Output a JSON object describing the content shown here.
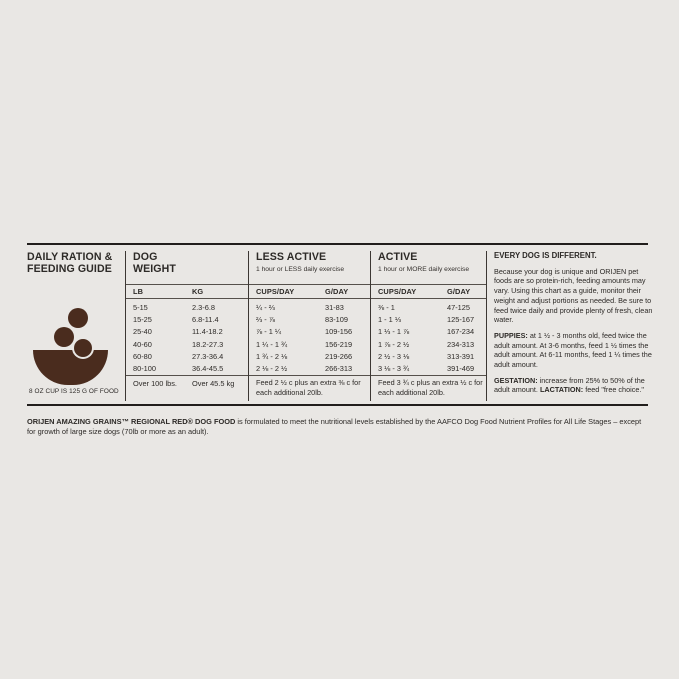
{
  "guide": {
    "title_line1": "DAILY RATION &",
    "title_line2": "FEEDING GUIDE",
    "bowl_icon": "bowl-with-kibble",
    "bowl_color": "#4a2c1e",
    "background_color": "#e9e7e4",
    "cup_note": "8 OZ CUP IS 125 G OF FOOD"
  },
  "weight": {
    "title_line1": "DOG",
    "title_line2": "WEIGHT",
    "col_lb": "LB",
    "col_kg": "KG",
    "rows": [
      {
        "lb": "5-15",
        "kg": "2.3-6.8"
      },
      {
        "lb": "15-25",
        "kg": "6.8-11.4"
      },
      {
        "lb": "25-40",
        "kg": "11.4-18.2"
      },
      {
        "lb": "40-60",
        "kg": "18.2-27.3"
      },
      {
        "lb": "60-80",
        "kg": "27.3-36.4"
      },
      {
        "lb": "80-100",
        "kg": "36.4-45.5"
      }
    ],
    "over": {
      "lb": "Over 100 lbs.",
      "kg": "Over 45.5 kg"
    }
  },
  "less_active": {
    "title": "LESS ACTIVE",
    "subtitle": "1 hour or LESS daily exercise",
    "col_cups": "CUPS/DAY",
    "col_g": "G/DAY",
    "rows": [
      {
        "cups": "¼ - ⅔",
        "g": "31-83"
      },
      {
        "cups": "⅔ - ⅞",
        "g": "83-109"
      },
      {
        "cups": "⅞ - 1 ¼",
        "g": "109-156"
      },
      {
        "cups": "1 ¼ - 1 ¾",
        "g": "156-219"
      },
      {
        "cups": "1 ¾ - 2 ⅛",
        "g": "219-266"
      },
      {
        "cups": "2 ⅛ - 2 ½",
        "g": "266-313"
      }
    ],
    "footer": "Feed 2 ½ c plus an extra ⅜ c for each additional 20lb."
  },
  "active": {
    "title": "ACTIVE",
    "subtitle": "1 hour or MORE daily exercise",
    "col_cups": "CUPS/DAY",
    "col_g": "G/DAY",
    "rows": [
      {
        "cups": "⅜ - 1",
        "g": "47-125"
      },
      {
        "cups": "1 - 1 ⅓",
        "g": "125-167"
      },
      {
        "cups": "1 ⅓ - 1 ⅞",
        "g": "167-234"
      },
      {
        "cups": "1 ⅞ - 2 ½",
        "g": "234-313"
      },
      {
        "cups": "2 ½ - 3 ⅛",
        "g": "313-391"
      },
      {
        "cups": "3 ⅛ - 3 ¾",
        "g": "391-469"
      }
    ],
    "footer": "Feed 3 ¾ c plus an extra ½ c for each additional 20lb."
  },
  "notes": {
    "heading": "EVERY DOG IS DIFFERENT.",
    "intro": "Because your dog is unique and ORIJEN pet foods are so protein-rich, feeding amounts may vary. Using this chart as a guide, monitor their weight and adjust portions as needed. Be sure to feed twice daily and provide plenty of fresh, clean water.",
    "puppies_label": "PUPPIES:",
    "puppies_text": " at 1 ½ - 3 months old, feed twice the adult amount. At 3-6 months, feed 1 ½ times the adult amount. At 6-11 months, feed 1 ¼ times the adult amount.",
    "gestation_label": "GESTATION:",
    "gestation_text": " increase from 25% to 50% of the adult amount. ",
    "lactation_label": "LACTATION:",
    "lactation_text": " feed \"free choice.\""
  },
  "disclaimer": {
    "bold": "ORIJEN AMAZING GRAINS™ REGIONAL RED® DOG FOOD",
    "rest": " is formulated to meet the nutritional levels established by the AAFCO Dog Food Nutrient Profiles for All Life Stages – except for growth of large size dogs (70lb or more as an adult)."
  }
}
